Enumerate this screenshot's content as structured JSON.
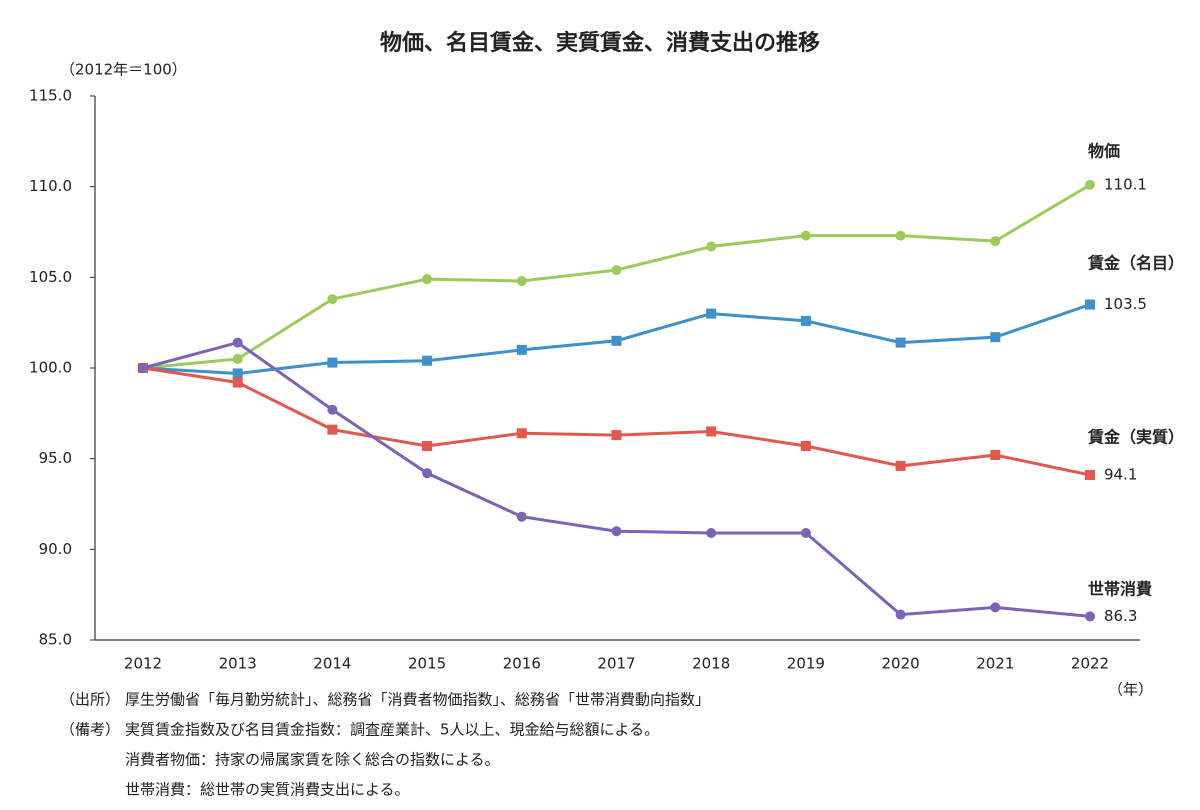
{
  "chart_data": {
    "type": "line",
    "title": "物価、名目賃金、実質賃金、消費支出の推移",
    "y_axis_label": "（2012年＝100）",
    "x_axis_label": "（年）",
    "categories": [
      "2012",
      "2013",
      "2014",
      "2015",
      "2016",
      "2017",
      "2018",
      "2019",
      "2020",
      "2021",
      "2022"
    ],
    "series": [
      {
        "name": "物価",
        "color": "#9bcb5a",
        "marker": "circle",
        "values": [
          100,
          100.5,
          103.8,
          104.9,
          104.8,
          105.4,
          106.7,
          107.3,
          107.3,
          107.0,
          110.1
        ]
      },
      {
        "name": "賃金（名目）",
        "color": "#3f8fcb",
        "marker": "square",
        "values": [
          100,
          99.7,
          100.3,
          100.4,
          101.0,
          101.5,
          103.0,
          102.6,
          101.4,
          101.7,
          103.5
        ]
      },
      {
        "name": "賃金（実質）",
        "color": "#e2584e",
        "marker": "square",
        "values": [
          100,
          99.2,
          96.6,
          95.7,
          96.4,
          96.3,
          96.5,
          95.7,
          94.6,
          95.2,
          94.1
        ]
      },
      {
        "name": "世帯消費",
        "color": "#7d62b5",
        "marker": "circle",
        "values": [
          100,
          101.4,
          97.7,
          94.2,
          91.8,
          91.0,
          90.9,
          90.9,
          86.4,
          86.8,
          86.3
        ]
      }
    ],
    "ylim": [
      85,
      115
    ],
    "yticks": [
      {
        "value": 85,
        "label": "85.0"
      },
      {
        "value": 90,
        "label": "90.0"
      },
      {
        "value": 95,
        "label": "95.0"
      },
      {
        "value": 100,
        "label": "100.0"
      },
      {
        "value": 105,
        "label": "105.0"
      },
      {
        "value": 110,
        "label": "110.0"
      },
      {
        "value": 115,
        "label": "115.0"
      }
    ],
    "grid": false,
    "notes": {
      "source": {
        "label": "（出所）",
        "text": "厚生労働省「毎月勤労統計」、総務省「消費者物価指数」、総務省「世帯消費動向指数」"
      },
      "remarks": {
        "label": "（備考）",
        "lines": [
          "実質賃金指数及び名目賃金指数：調査産業計、5人以上、現金給与総額による。",
          "消費者物価：持家の帰属家賃を除く総合の指数による。",
          "世帯消費：総世帯の実質消費支出による。"
        ]
      }
    }
  }
}
